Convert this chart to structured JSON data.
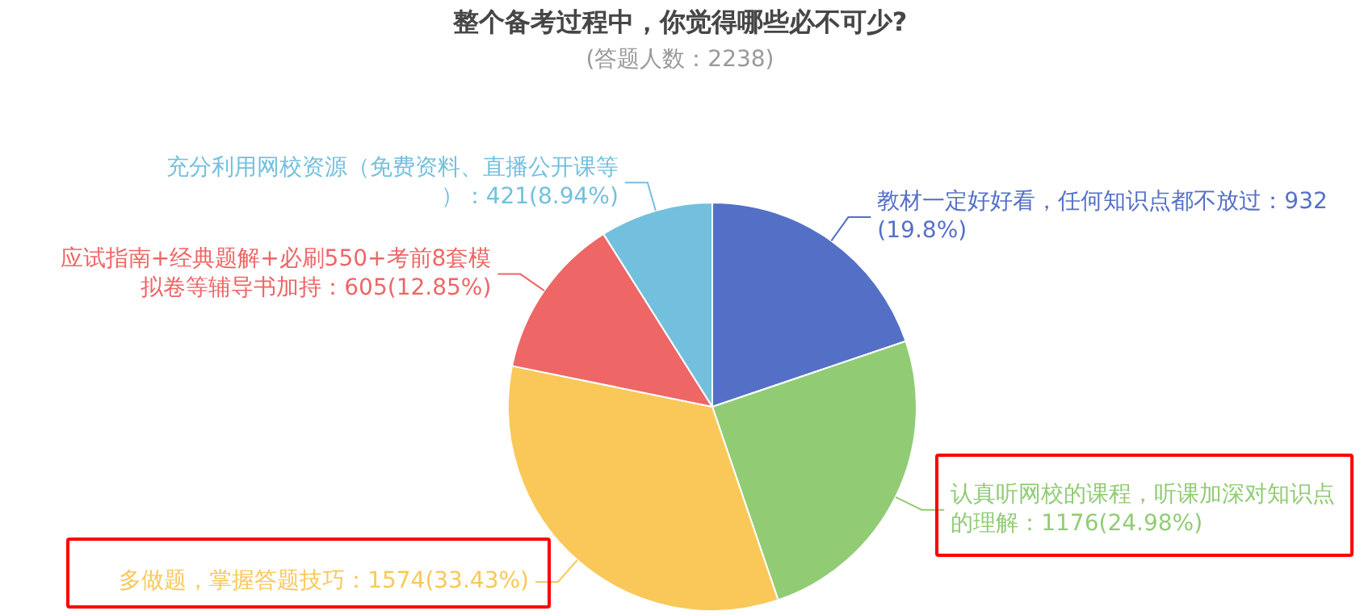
{
  "chart_data": {
    "type": "pie",
    "title": "整个备考过程中，你觉得哪些必不可少?",
    "subtitle": "(答题人数：2238)",
    "categories": [
      "教材一定好好看，任何知识点都不放过",
      "认真听网校的课程，听课加深对知识点的理解",
      "多做题，掌握答题技巧",
      "应试指南+经典题解+必刷550+考前8套模拟卷等辅导书加持",
      "充分利用网校资源（免费资料、直播公开课等）"
    ],
    "values": [
      932,
      1176,
      1574,
      605,
      421
    ],
    "value_labels": [
      "932(19.8%)",
      "1176(24.98%)",
      "1574(33.43%)",
      "605(12.85%)",
      "421(8.94%)"
    ],
    "colors": [
      "#5470c6",
      "#91cc75",
      "#fac858",
      "#ee6666",
      "#73c0de"
    ],
    "legend": false
  }
}
